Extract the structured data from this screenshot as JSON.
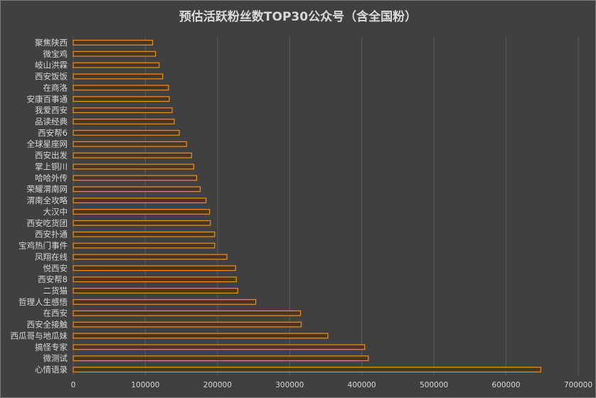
{
  "chart_data": {
    "type": "bar",
    "orientation": "horizontal",
    "title": "预估活跃粉丝数TOP30公众号（含全国粉）",
    "xlabel": "",
    "ylabel": "",
    "xlim": [
      0,
      700000
    ],
    "x_ticks": [
      "0",
      "100000",
      "200000",
      "300000",
      "400000",
      "500000",
      "600000",
      "700000"
    ],
    "grid": true,
    "legend": "none",
    "colors": {
      "background": "#404040",
      "bar_fill": "#4a3520",
      "bar_stroke": "#f0901c",
      "grid": "#5c5c5c",
      "text": "#d9d9d9"
    },
    "categories": [
      "聚焦陕西",
      "微宝鸡",
      "岐山洪霖",
      "西安饭饭",
      "在商洛",
      "安康百事通",
      "我爱西安",
      "品读经典",
      "西安帮6",
      "全球星座网",
      "西安出发",
      "掌上铜川",
      "哈哈外传",
      "荣耀渭南网",
      "渭南全攻略",
      "大汉中",
      "西安吃货团",
      "西安扑通",
      "宝鸡热门事件",
      "凤翔在线",
      "悦西安",
      "西安帮8",
      "二货猫",
      "哲理人生感悟",
      "在西安",
      "西安全接触",
      "西瓜哥与地瓜妹",
      "搞怪专家",
      "微测试",
      "心情语录"
    ],
    "values": [
      110000,
      114000,
      119000,
      124000,
      132000,
      133000,
      137000,
      140000,
      147000,
      157000,
      164000,
      167000,
      171000,
      176000,
      184000,
      189000,
      190000,
      196000,
      196000,
      213000,
      225000,
      226000,
      228000,
      253000,
      315000,
      316000,
      353000,
      404000,
      409000,
      648000
    ]
  }
}
